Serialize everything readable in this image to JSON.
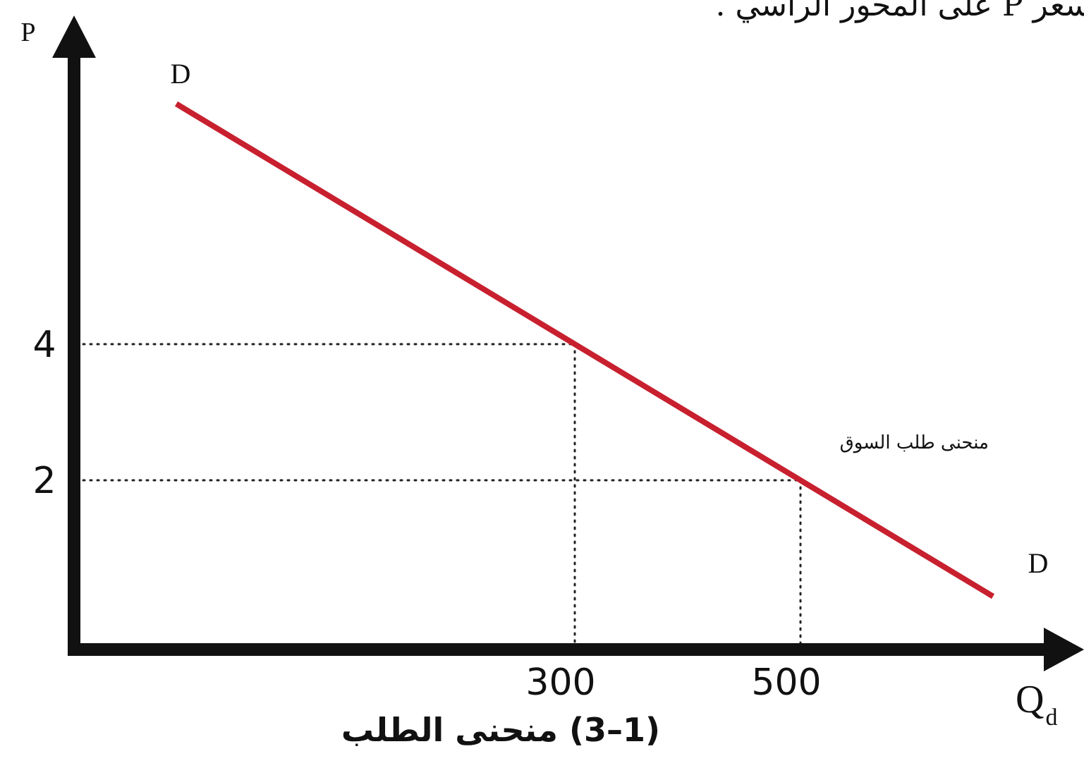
{
  "header_text": "سعر P على المحور الرأسي .",
  "caption": "(1–3) منحنى الطلب",
  "chart_data": {
    "type": "line",
    "title": "",
    "xlabel": "Q",
    "xlabel_subscript": "d",
    "ylabel": "P",
    "x_ticks": [
      300,
      500
    ],
    "y_ticks": [
      4,
      2
    ],
    "grid": false,
    "series": [
      {
        "name": "منحنى طلب السوق",
        "color": "#c8202e",
        "start_label": "D",
        "end_label": "D",
        "points": [
          {
            "x": 300,
            "y": 4
          },
          {
            "x": 500,
            "y": 2
          }
        ]
      }
    ],
    "guide_lines": [
      {
        "x": 300,
        "y": 4
      },
      {
        "x": 500,
        "y": 2
      }
    ]
  }
}
